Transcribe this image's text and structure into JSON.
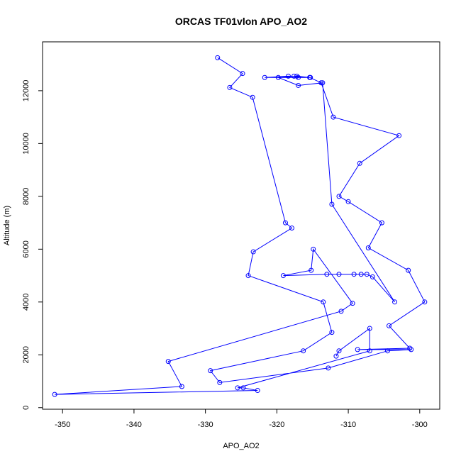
{
  "chart_data": {
    "type": "line",
    "title": "ORCAS TF01vlon APO_AO2",
    "xlabel": "APO_AO2",
    "ylabel": "Altitude (m)",
    "xlim": [
      -352.8,
      -297.2
    ],
    "ylim": [
      -60,
      13850
    ],
    "xticks": [
      -350,
      -340,
      -330,
      -320,
      -310,
      -300
    ],
    "yticks": [
      0,
      2000,
      4000,
      6000,
      8000,
      10000,
      12000
    ],
    "line_color": "#0000ff",
    "marker": "open-circle",
    "grid": false,
    "series": [
      {
        "points": [
          [
            -328.3,
            13250
          ],
          [
            -324.8,
            12650
          ],
          [
            -326.6,
            12120
          ],
          [
            -323.4,
            11750
          ],
          [
            -318.8,
            7000
          ],
          [
            -317.9,
            6800
          ],
          [
            -323.3,
            5900
          ],
          [
            -324.0,
            5000
          ],
          [
            -313.5,
            4000
          ],
          [
            -312.3,
            2850
          ],
          [
            -316.3,
            2150
          ],
          [
            -329.3,
            1400
          ],
          [
            -328.0,
            950
          ],
          [
            -312.8,
            1500
          ],
          [
            -304.5,
            2150
          ],
          [
            -301.2,
            2200
          ],
          [
            -308.7,
            2200
          ],
          [
            -301.4,
            2250
          ],
          [
            -304.3,
            3100
          ],
          [
            -299.3,
            4000
          ],
          [
            -301.6,
            5200
          ],
          [
            -307.2,
            6050
          ],
          [
            -305.3,
            7000
          ],
          [
            -310.0,
            7800
          ],
          [
            -311.3,
            8000
          ],
          [
            -308.4,
            9250
          ],
          [
            -302.9,
            10300
          ],
          [
            -312.1,
            11000
          ],
          [
            -313.8,
            12300
          ],
          [
            -315.4,
            12500
          ],
          [
            -317.0,
            12500
          ],
          [
            -317.6,
            12550
          ],
          [
            -315.3,
            12500
          ],
          [
            -318.4,
            12550
          ],
          [
            -321.7,
            12500
          ],
          [
            -315.4,
            12500
          ],
          [
            -317.2,
            12550
          ],
          [
            -319.8,
            12500
          ],
          [
            -317.0,
            12200
          ],
          [
            -313.6,
            12300
          ],
          [
            -312.3,
            7700
          ],
          [
            -303.5,
            4000
          ],
          [
            -306.6,
            4950
          ],
          [
            -307.4,
            5050
          ],
          [
            -308.2,
            5050
          ],
          [
            -309.2,
            5050
          ],
          [
            -311.3,
            5050
          ],
          [
            -313.0,
            5050
          ],
          [
            -319.1,
            5000
          ],
          [
            -315.2,
            5200
          ],
          [
            -314.9,
            6000
          ],
          [
            -309.4,
            3950
          ],
          [
            -311.0,
            3650
          ],
          [
            -335.2,
            1750
          ],
          [
            -333.3,
            800
          ],
          [
            -351.1,
            500
          ],
          [
            -322.7,
            650
          ],
          [
            -324.7,
            750
          ],
          [
            -325.5,
            750
          ],
          [
            -307.0,
            2150
          ],
          [
            -307.0,
            3000
          ],
          [
            -311.3,
            2150
          ],
          [
            -311.7,
            1950
          ]
        ]
      }
    ]
  }
}
